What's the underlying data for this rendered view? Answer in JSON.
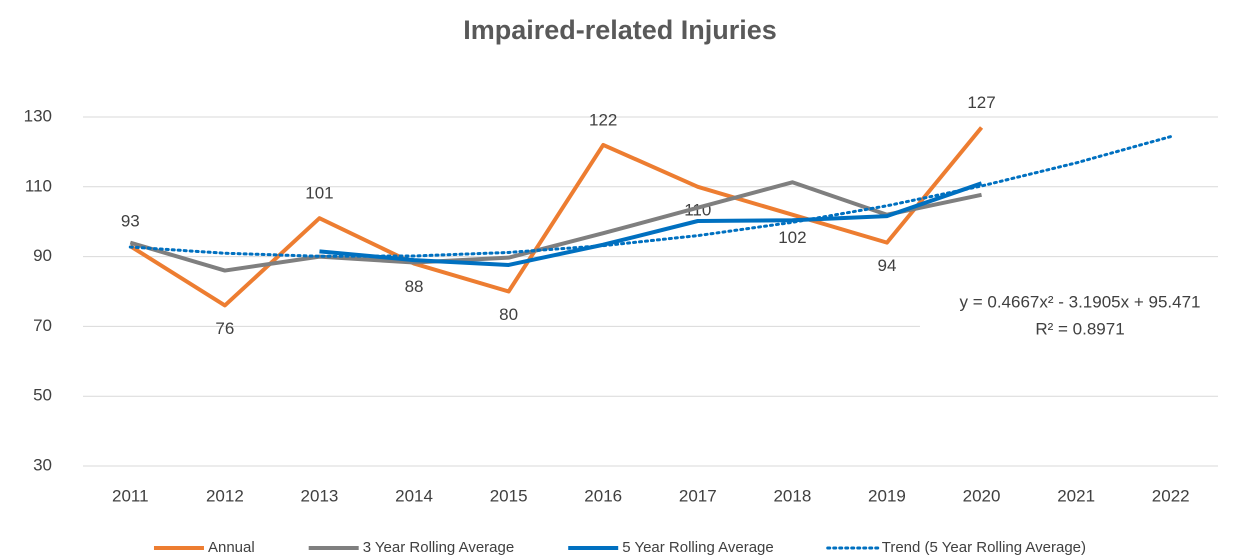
{
  "chart_data": {
    "type": "line",
    "title": "Impaired-related Injuries",
    "categories": [
      "2011",
      "2012",
      "2013",
      "2014",
      "2015",
      "2016",
      "2017",
      "2018",
      "2019",
      "2020",
      "2021",
      "2022"
    ],
    "series": [
      {
        "name": "Annual",
        "color": "#ed7d31",
        "style": "solid",
        "data_labels": true,
        "values": [
          93,
          76,
          101,
          88,
          80,
          122,
          110,
          102,
          94,
          127,
          null,
          null
        ]
      },
      {
        "name": "3 Year Rolling Average",
        "color": "#7f7f7f",
        "style": "solid",
        "values": [
          94,
          86,
          90,
          88.3,
          89.7,
          96.7,
          104,
          111.3,
          102,
          107.7,
          null,
          null
        ]
      },
      {
        "name": "5 Year Rolling Average",
        "color": "#0070c0",
        "style": "solid",
        "values": [
          null,
          null,
          91.5,
          89,
          87.6,
          93.4,
          100.2,
          100.4,
          101.6,
          111,
          null,
          null
        ]
      },
      {
        "name": "Trend (5 Year Rolling Average)",
        "color": "#0070c0",
        "style": "dotted",
        "values": [
          92.75,
          90.96,
          90.1,
          90.18,
          91.19,
          93.13,
          96.01,
          99.82,
          104.56,
          110.24,
          116.85,
          124.39
        ]
      }
    ],
    "annotations": [
      "y = 0.4667x² - 3.1905x + 95.471",
      "R² = 0.8971"
    ],
    "ylim": [
      30,
      130
    ],
    "yticks": [
      30,
      50,
      70,
      90,
      110,
      130
    ],
    "grid": true,
    "legend": "bottom"
  }
}
